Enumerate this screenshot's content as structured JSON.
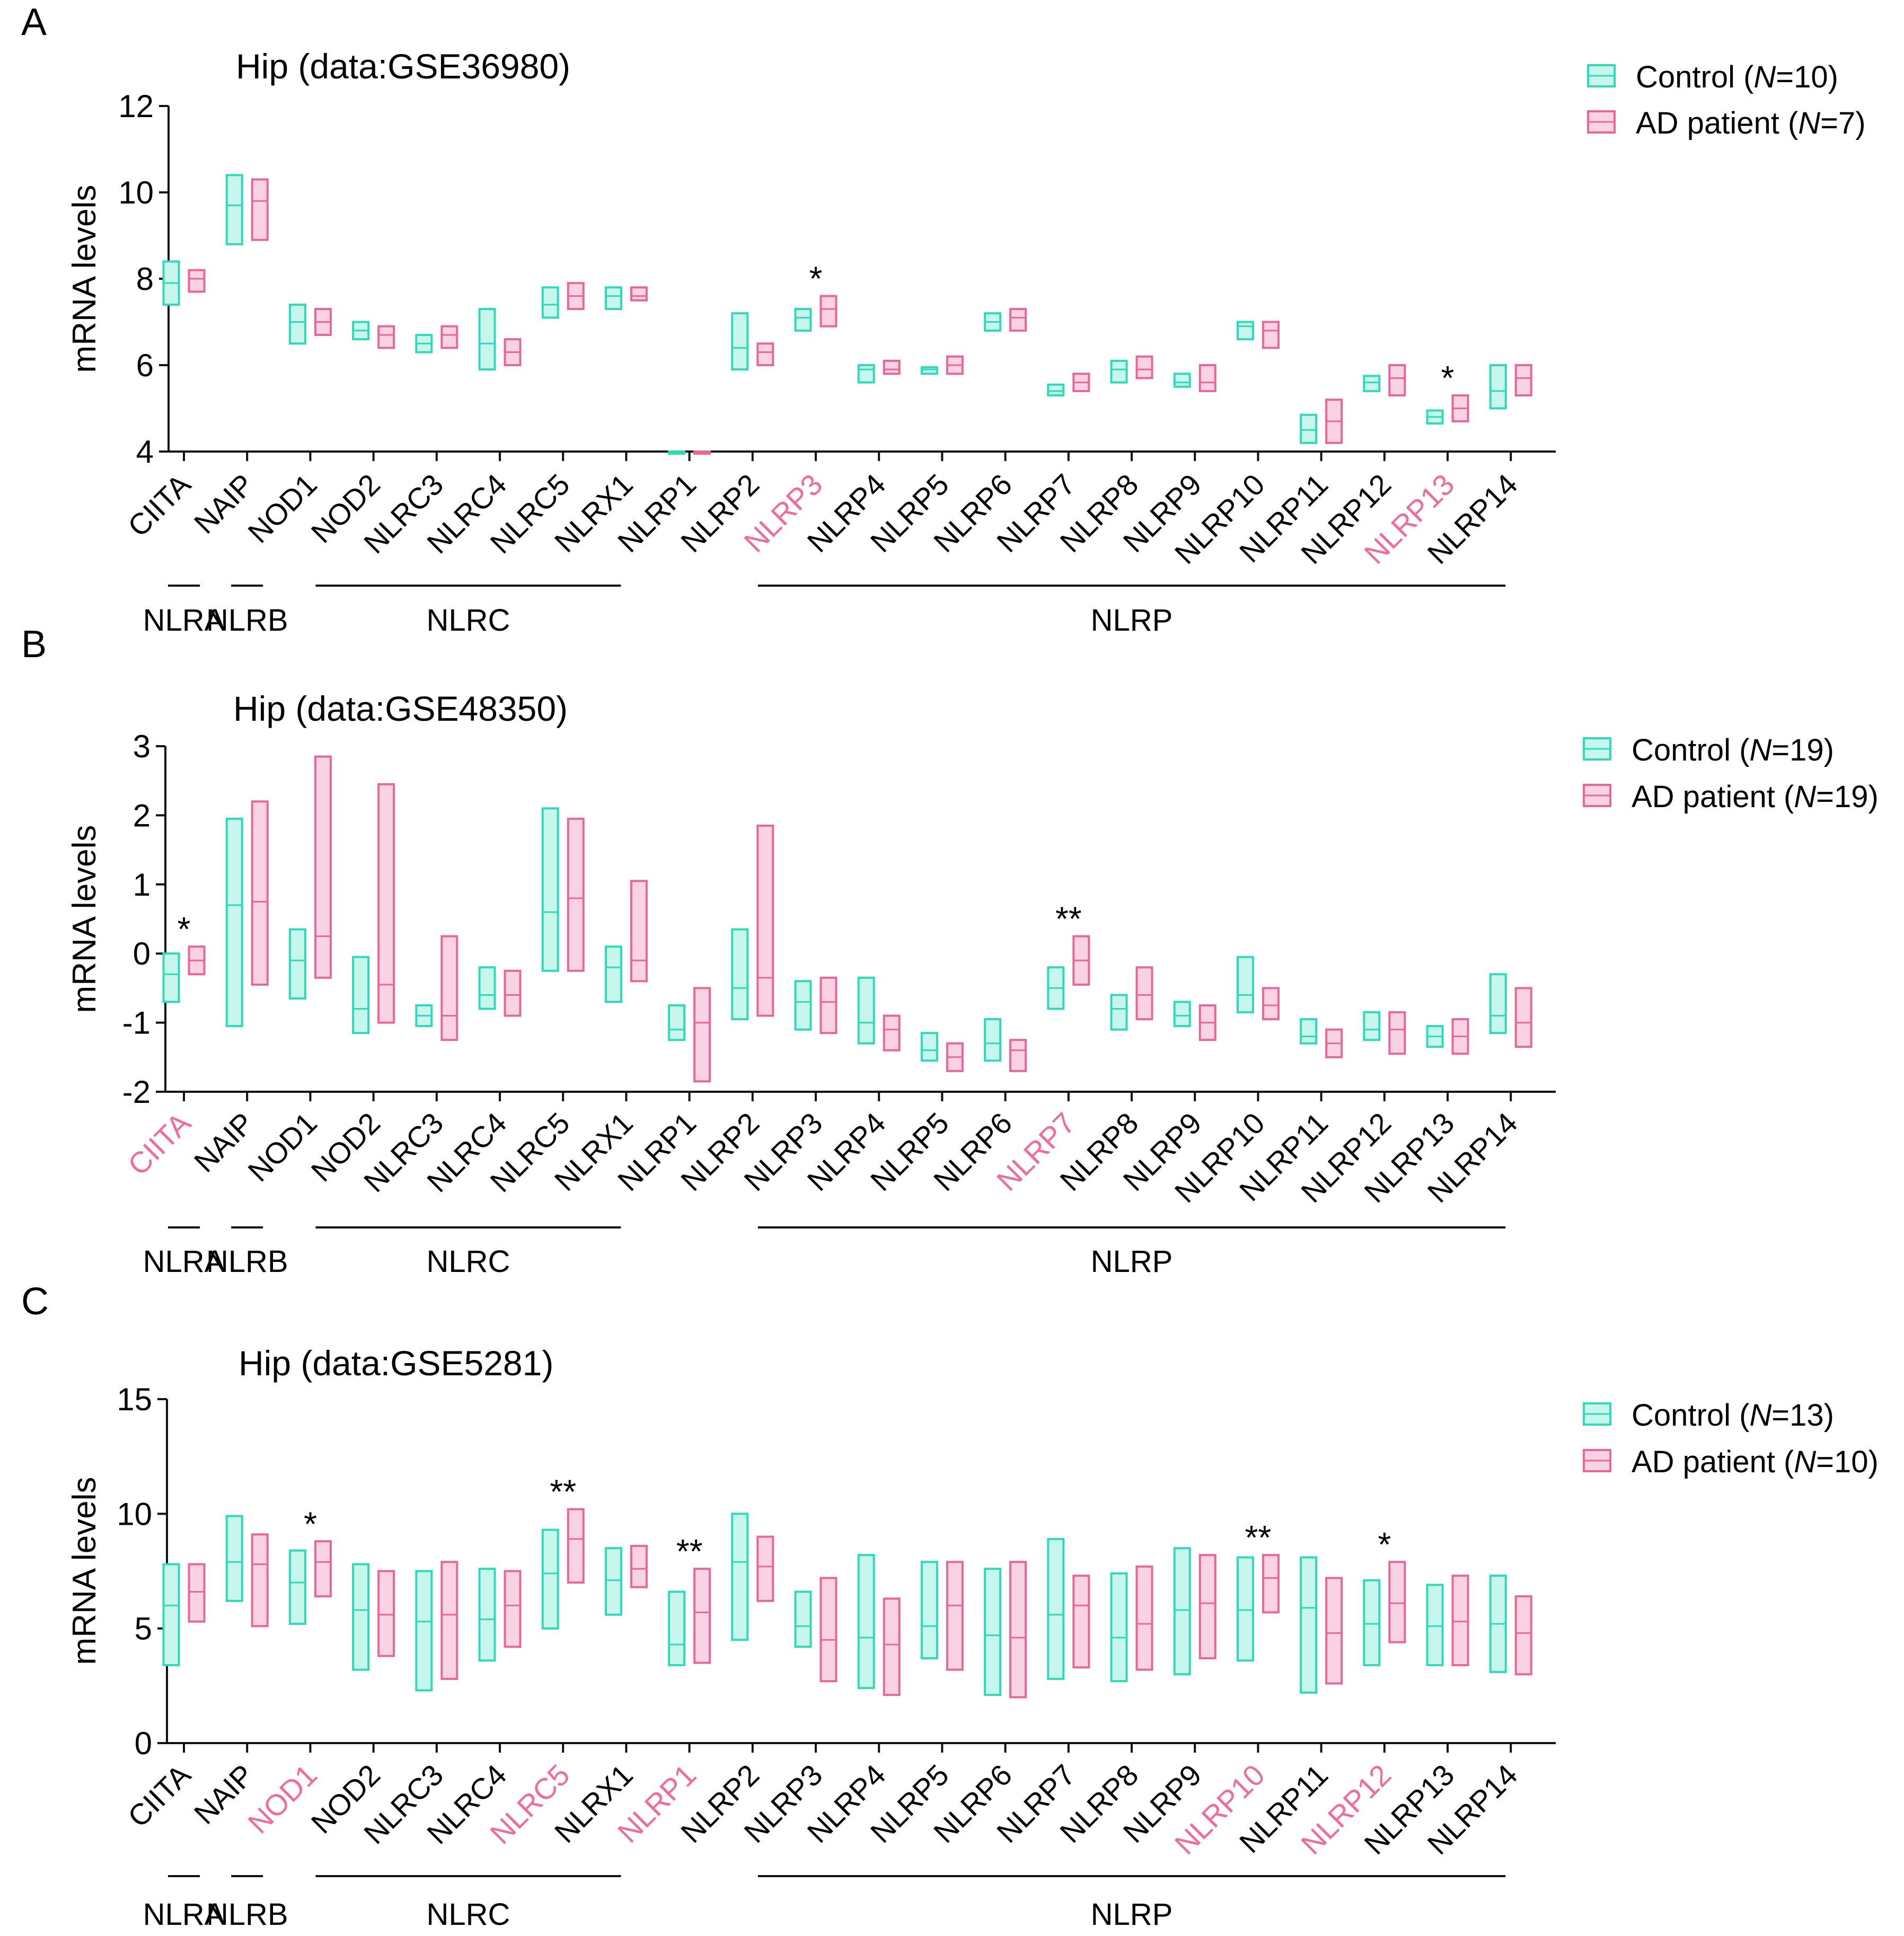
{
  "colors": {
    "control_stroke": "#2fd9b9",
    "control_fill": "#c6f6ec",
    "ad_stroke": "#e8679a",
    "ad_fill": "#fad3e2",
    "highlight_label": "#ef6c9b",
    "axis": "#111111"
  },
  "genes": [
    "CIITA",
    "NAIP",
    "NOD1",
    "NOD2",
    "NLRC3",
    "NLRC4",
    "NLRC5",
    "NLRX1",
    "NLRP1",
    "NLRP2",
    "NLRP3",
    "NLRP4",
    "NLRP5",
    "NLRP6",
    "NLRP7",
    "NLRP8",
    "NLRP9",
    "NLRP10",
    "NLRP11",
    "NLRP12",
    "NLRP13",
    "NLRP14"
  ],
  "groups": [
    {
      "label": "NLRA",
      "from": "CIITA",
      "to": "CIITA"
    },
    {
      "label": "NLRB",
      "from": "NAIP",
      "to": "NAIP"
    },
    {
      "label": "NLRC",
      "from": "NOD1",
      "to": "NLRX1"
    },
    {
      "label": "NLRP",
      "from": "NLRP2",
      "to": "NLRP14"
    }
  ],
  "chart_data": [
    {
      "type": "floating-bar",
      "panel_letter": "A",
      "title": "Hip (data:GSE36980)",
      "ylabel": "mRNA levels",
      "ylim": [
        4,
        12
      ],
      "yticks": [
        "4",
        "6",
        "8",
        "10",
        "12"
      ],
      "legend": {
        "control": "Control (",
        "control_n": "10",
        "ad": "AD patient (",
        "ad_n": "7",
        "n_symbol": "N",
        "close": ")"
      },
      "highlight": [
        "NLRP3",
        "NLRP13"
      ],
      "significance": {
        "NLRP3": "*",
        "NLRP13": "*"
      },
      "series": [
        {
          "name": "Control",
          "ranges": [
            [
              7.4,
              8.4
            ],
            [
              8.8,
              10.4
            ],
            [
              6.5,
              7.4
            ],
            [
              6.6,
              7.0
            ],
            [
              6.3,
              6.7
            ],
            [
              5.9,
              7.3
            ],
            [
              7.1,
              7.8
            ],
            [
              7.3,
              7.8
            ],
            [
              4.0,
              4.0
            ],
            [
              5.9,
              7.2
            ],
            [
              6.8,
              7.3
            ],
            [
              5.6,
              6.0
            ],
            [
              5.8,
              5.95
            ],
            [
              6.8,
              7.2
            ],
            [
              5.3,
              5.55
            ],
            [
              5.6,
              6.1
            ],
            [
              5.5,
              5.8
            ],
            [
              6.6,
              7.0
            ],
            [
              4.2,
              4.85
            ],
            [
              5.4,
              5.75
            ],
            [
              4.65,
              4.95
            ],
            [
              5.0,
              6.0
            ]
          ],
          "mids": [
            7.9,
            9.7,
            7.0,
            6.8,
            6.5,
            6.5,
            7.4,
            7.6,
            4.0,
            6.4,
            7.1,
            5.9,
            5.9,
            7.0,
            5.4,
            5.9,
            5.6,
            6.9,
            4.5,
            5.6,
            4.8,
            5.4
          ]
        },
        {
          "name": "AD patient",
          "ranges": [
            [
              7.7,
              8.2
            ],
            [
              8.9,
              10.3
            ],
            [
              6.7,
              7.3
            ],
            [
              6.4,
              6.9
            ],
            [
              6.4,
              6.9
            ],
            [
              6.0,
              6.6
            ],
            [
              7.3,
              7.9
            ],
            [
              7.5,
              7.8
            ],
            [
              4.0,
              4.0
            ],
            [
              6.0,
              6.5
            ],
            [
              6.9,
              7.6
            ],
            [
              5.8,
              6.1
            ],
            [
              5.8,
              6.2
            ],
            [
              6.8,
              7.3
            ],
            [
              5.4,
              5.8
            ],
            [
              5.7,
              6.2
            ],
            [
              5.4,
              6.0
            ],
            [
              6.4,
              7.0
            ],
            [
              4.2,
              5.2
            ],
            [
              5.3,
              6.0
            ],
            [
              4.7,
              5.3
            ],
            [
              5.3,
              6.0
            ]
          ],
          "mids": [
            8.0,
            9.8,
            7.0,
            6.7,
            6.7,
            6.3,
            7.6,
            7.6,
            4.0,
            6.3,
            7.3,
            5.9,
            6.0,
            7.1,
            5.6,
            5.9,
            5.6,
            6.8,
            4.7,
            5.7,
            5.0,
            5.7
          ]
        }
      ]
    },
    {
      "type": "floating-bar",
      "panel_letter": "B",
      "title": "Hip (data:GSE48350)",
      "ylabel": "mRNA levels",
      "ylim": [
        -2,
        3
      ],
      "yticks": [
        "-2",
        "-1",
        "0",
        "1",
        "2",
        "3"
      ],
      "legend": {
        "control": "Control (",
        "control_n": "19",
        "ad": "AD patient (",
        "ad_n": "19",
        "n_symbol": "N",
        "close": ")"
      },
      "highlight": [
        "CIITA",
        "NLRP7"
      ],
      "significance": {
        "CIITA": "*",
        "NLRP7": "**"
      },
      "series": [
        {
          "name": "Control",
          "ranges": [
            [
              -0.7,
              0.0
            ],
            [
              -1.05,
              1.95
            ],
            [
              -0.65,
              0.35
            ],
            [
              -1.15,
              -0.05
            ],
            [
              -1.05,
              -0.75
            ],
            [
              -0.8,
              -0.2
            ],
            [
              -0.25,
              2.1
            ],
            [
              -0.7,
              0.1
            ],
            [
              -1.25,
              -0.75
            ],
            [
              -0.95,
              0.35
            ],
            [
              -1.1,
              -0.4
            ],
            [
              -1.3,
              -0.35
            ],
            [
              -1.55,
              -1.15
            ],
            [
              -1.55,
              -0.95
            ],
            [
              -0.8,
              -0.2
            ],
            [
              -1.1,
              -0.6
            ],
            [
              -1.05,
              -0.7
            ],
            [
              -0.85,
              -0.05
            ],
            [
              -1.3,
              -0.95
            ],
            [
              -1.25,
              -0.85
            ],
            [
              -1.35,
              -1.05
            ],
            [
              -1.15,
              -0.3
            ]
          ],
          "mids": [
            -0.3,
            0.7,
            -0.1,
            -0.8,
            -0.9,
            -0.6,
            0.6,
            -0.2,
            -1.1,
            -0.5,
            -0.7,
            -1.0,
            -1.4,
            -1.3,
            -0.5,
            -0.8,
            -0.9,
            -0.6,
            -1.2,
            -1.1,
            -1.2,
            -0.9
          ]
        },
        {
          "name": "AD patient",
          "ranges": [
            [
              -0.3,
              0.1
            ],
            [
              -0.45,
              2.2
            ],
            [
              -0.35,
              2.85
            ],
            [
              -1.0,
              2.45
            ],
            [
              -1.25,
              0.25
            ],
            [
              -0.9,
              -0.25
            ],
            [
              -0.25,
              1.95
            ],
            [
              -0.4,
              1.05
            ],
            [
              -1.85,
              -0.5
            ],
            [
              -0.9,
              1.85
            ],
            [
              -1.15,
              -0.35
            ],
            [
              -1.4,
              -0.9
            ],
            [
              -1.7,
              -1.3
            ],
            [
              -1.7,
              -1.25
            ],
            [
              -0.45,
              0.25
            ],
            [
              -0.95,
              -0.2
            ],
            [
              -1.25,
              -0.75
            ],
            [
              -0.95,
              -0.5
            ],
            [
              -1.5,
              -1.1
            ],
            [
              -1.45,
              -0.85
            ],
            [
              -1.45,
              -0.95
            ],
            [
              -1.35,
              -0.5
            ]
          ],
          "mids": [
            -0.1,
            0.75,
            0.25,
            -0.45,
            -0.9,
            -0.6,
            0.8,
            -0.1,
            -1.0,
            -0.35,
            -0.7,
            -1.1,
            -1.5,
            -1.4,
            -0.1,
            -0.6,
            -1.0,
            -0.75,
            -1.3,
            -1.1,
            -1.2,
            -1.0
          ]
        }
      ]
    },
    {
      "type": "floating-bar",
      "panel_letter": "C",
      "title": "Hip (data:GSE5281)",
      "ylabel": "mRNA levels",
      "ylim": [
        0,
        15
      ],
      "yticks": [
        "0",
        "5",
        "10",
        "15"
      ],
      "legend": {
        "control": "Control (",
        "control_n": "13",
        "ad": "AD patient (",
        "ad_n": "10",
        "n_symbol": "N",
        "close": ")"
      },
      "highlight": [
        "NOD1",
        "NLRC5",
        "NLRP1",
        "NLRP10",
        "NLRP12"
      ],
      "significance": {
        "NOD1": "*",
        "NLRC5": "**",
        "NLRP1": "**",
        "NLRP10": "**",
        "NLRP12": "*"
      },
      "series": [
        {
          "name": "Control",
          "ranges": [
            [
              3.4,
              7.8
            ],
            [
              6.2,
              9.9
            ],
            [
              5.2,
              8.4
            ],
            [
              3.2,
              7.8
            ],
            [
              2.3,
              7.5
            ],
            [
              3.6,
              7.6
            ],
            [
              5.0,
              9.3
            ],
            [
              5.6,
              8.5
            ],
            [
              3.4,
              6.6
            ],
            [
              4.5,
              10.0
            ],
            [
              4.2,
              6.6
            ],
            [
              2.4,
              8.2
            ],
            [
              3.7,
              7.9
            ],
            [
              2.1,
              7.6
            ],
            [
              2.8,
              8.9
            ],
            [
              2.7,
              7.4
            ],
            [
              3.0,
              8.5
            ],
            [
              3.6,
              8.1
            ],
            [
              2.2,
              8.1
            ],
            [
              3.4,
              7.1
            ],
            [
              3.4,
              6.9
            ],
            [
              3.1,
              7.3
            ]
          ],
          "mids": [
            6.0,
            7.9,
            7.0,
            5.8,
            5.3,
            5.4,
            7.4,
            7.1,
            4.3,
            7.9,
            5.1,
            4.6,
            5.1,
            4.7,
            5.6,
            4.6,
            5.8,
            5.8,
            5.9,
            5.2,
            5.1,
            5.2
          ]
        },
        {
          "name": "AD patient",
          "ranges": [
            [
              5.3,
              7.8
            ],
            [
              5.1,
              9.1
            ],
            [
              6.4,
              8.8
            ],
            [
              3.8,
              7.5
            ],
            [
              2.8,
              7.9
            ],
            [
              4.2,
              7.5
            ],
            [
              7.0,
              10.2
            ],
            [
              6.8,
              8.6
            ],
            [
              3.5,
              7.6
            ],
            [
              6.2,
              9.0
            ],
            [
              2.7,
              7.2
            ],
            [
              2.1,
              6.3
            ],
            [
              3.2,
              7.9
            ],
            [
              2.0,
              7.9
            ],
            [
              3.3,
              7.3
            ],
            [
              3.2,
              7.7
            ],
            [
              3.7,
              8.2
            ],
            [
              5.7,
              8.2
            ],
            [
              2.6,
              7.2
            ],
            [
              4.4,
              7.9
            ],
            [
              3.4,
              7.3
            ],
            [
              3.0,
              6.4
            ]
          ],
          "mids": [
            6.6,
            7.8,
            7.9,
            5.6,
            5.6,
            6.0,
            8.9,
            7.6,
            5.7,
            7.7,
            4.5,
            4.3,
            6.0,
            4.6,
            6.0,
            5.2,
            6.1,
            7.2,
            4.8,
            6.1,
            5.3,
            4.8
          ]
        }
      ]
    }
  ]
}
